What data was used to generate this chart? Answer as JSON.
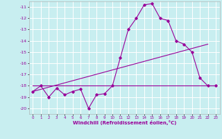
{
  "hours": [
    0,
    1,
    2,
    3,
    4,
    5,
    6,
    7,
    8,
    9,
    10,
    11,
    12,
    13,
    14,
    15,
    16,
    17,
    18,
    19,
    20,
    21,
    22,
    23
  ],
  "windchill": [
    -18.5,
    -18.0,
    -19.0,
    -18.2,
    -18.8,
    -18.5,
    -18.3,
    -20.0,
    -18.8,
    -18.7,
    -18.0,
    -15.5,
    -13.0,
    -12.0,
    -10.8,
    -10.7,
    -12.0,
    -12.2,
    -14.0,
    -14.3,
    -15.0,
    -17.3,
    -18.0,
    -18.0
  ],
  "line2_x": [
    0,
    23
  ],
  "line2_y": [
    -18.0,
    -18.0
  ],
  "line3_x": [
    0,
    22
  ],
  "line3_y": [
    -18.5,
    -14.3
  ],
  "color": "#990099",
  "bg_color": "#c8eef0",
  "grid_color": "#ffffff",
  "xlabel": "Windchill (Refroidissement éolien,°C)",
  "ylim": [
    -20.5,
    -10.5
  ],
  "xlim": [
    -0.5,
    23.5
  ],
  "yticks": [
    -20,
    -19,
    -18,
    -17,
    -16,
    -15,
    -14,
    -13,
    -12,
    -11
  ],
  "xticks": [
    0,
    1,
    2,
    3,
    4,
    5,
    6,
    7,
    8,
    9,
    10,
    11,
    12,
    13,
    14,
    15,
    16,
    17,
    18,
    19,
    20,
    21,
    22,
    23
  ]
}
